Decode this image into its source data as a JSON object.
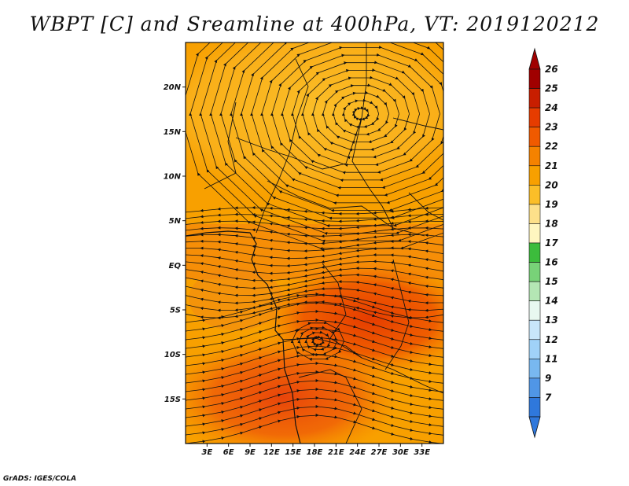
{
  "title": "WBPT [C] and Sreamline at 400hPa, VT: 2019120212",
  "credit": "GrADS: IGES/COLA",
  "map": {
    "lon_range": [
      0,
      36
    ],
    "lat_range": [
      -20,
      25
    ],
    "lat_ticks": [
      {
        "label": "20N",
        "value": 20
      },
      {
        "label": "15N",
        "value": 15
      },
      {
        "label": "10N",
        "value": 10
      },
      {
        "label": "5N",
        "value": 5
      },
      {
        "label": "EQ",
        "value": 0
      },
      {
        "label": "5S",
        "value": -5
      },
      {
        "label": "10S",
        "value": -10
      },
      {
        "label": "15S",
        "value": -15
      }
    ],
    "lon_ticks": [
      {
        "label": "3E",
        "value": 3
      },
      {
        "label": "6E",
        "value": 6
      },
      {
        "label": "9E",
        "value": 9
      },
      {
        "label": "12E",
        "value": 12
      },
      {
        "label": "15E",
        "value": 15
      },
      {
        "label": "18E",
        "value": 18
      },
      {
        "label": "21E",
        "value": 21
      },
      {
        "label": "24E",
        "value": 24
      },
      {
        "label": "27E",
        "value": 27
      },
      {
        "label": "30E",
        "value": 30
      },
      {
        "label": "33E",
        "value": 33
      }
    ],
    "cyclone_center": {
      "lon": 24.5,
      "lat": 17
    }
  },
  "colorbar": {
    "levels": [
      {
        "label": "26",
        "color": "#a00000"
      },
      {
        "label": "25",
        "color": "#c81e00"
      },
      {
        "label": "24",
        "color": "#e63c00"
      },
      {
        "label": "23",
        "color": "#f05a00"
      },
      {
        "label": "22",
        "color": "#f58200"
      },
      {
        "label": "21",
        "color": "#f8a000"
      },
      {
        "label": "20",
        "color": "#fbbe28"
      },
      {
        "label": "19",
        "color": "#fde08a"
      },
      {
        "label": "18",
        "color": "#fff6c0"
      },
      {
        "label": "17",
        "color": "#3cbc3c"
      },
      {
        "label": "16",
        "color": "#78d278"
      },
      {
        "label": "15",
        "color": "#b4e6b4"
      },
      {
        "label": "14",
        "color": "#e8f8f0"
      },
      {
        "label": "13",
        "color": "#c8e6fa"
      },
      {
        "label": "12",
        "color": "#a0d2f8"
      },
      {
        "label": "11",
        "color": "#78b8f0"
      },
      {
        "label": "9",
        "color": "#5096e6"
      },
      {
        "label": "7",
        "color": "#2f78dc"
      }
    ],
    "top_arrow_color": "#a00000",
    "bottom_arrow_color": "#2f78dc"
  }
}
